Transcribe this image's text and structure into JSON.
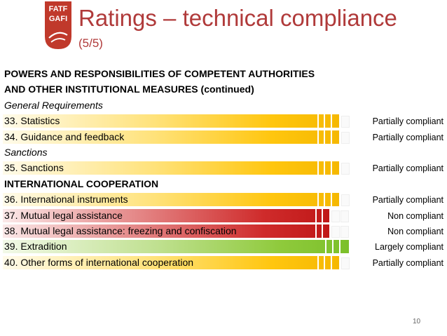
{
  "logo": {
    "line1": "FATF",
    "line2": "GAFI"
  },
  "title": "Ratings – technical compliance",
  "subtitle": "(5/5)",
  "rows": [
    {
      "kind": "heading",
      "label": "POWERS AND RESPONSIBILITIES OF COMPETENT AUTHORITIES"
    },
    {
      "kind": "heading",
      "label": "AND OTHER INSTITUTIONAL MEASURES (continued)"
    },
    {
      "kind": "italic",
      "label": "General Requirements"
    },
    {
      "kind": "rec",
      "label": "33. Statistics",
      "rating": "Partially compliant",
      "level": "partial"
    },
    {
      "kind": "rec",
      "label": "34. Guidance and feedback",
      "rating": "Partially compliant",
      "level": "partial"
    },
    {
      "kind": "italic",
      "label": "Sanctions"
    },
    {
      "kind": "rec",
      "label": "35. Sanctions",
      "rating": "Partially compliant",
      "level": "partial"
    },
    {
      "kind": "heading",
      "label": "INTERNATIONAL COOPERATION"
    },
    {
      "kind": "rec",
      "label": "36. International instruments",
      "rating": "Partially compliant",
      "level": "partial"
    },
    {
      "kind": "rec",
      "label": "37. Mutual legal assistance",
      "rating": "Non compliant",
      "level": "non"
    },
    {
      "kind": "rec",
      "label": "38. Mutual legal assistance: freezing and confiscation",
      "rating": "Non compliant",
      "level": "non"
    },
    {
      "kind": "rec",
      "label": "39. Extradition",
      "rating": "Largely compliant",
      "level": "largely"
    },
    {
      "kind": "rec",
      "label": "40. Other forms of international cooperation",
      "rating": "Partially compliant",
      "level": "partial"
    }
  ],
  "page_number": "10",
  "colors": {
    "title": "#b03a3a",
    "partial": "#ffc60f",
    "non": "#c01818",
    "largely": "#7cc02a",
    "logo": "#c0392b"
  }
}
